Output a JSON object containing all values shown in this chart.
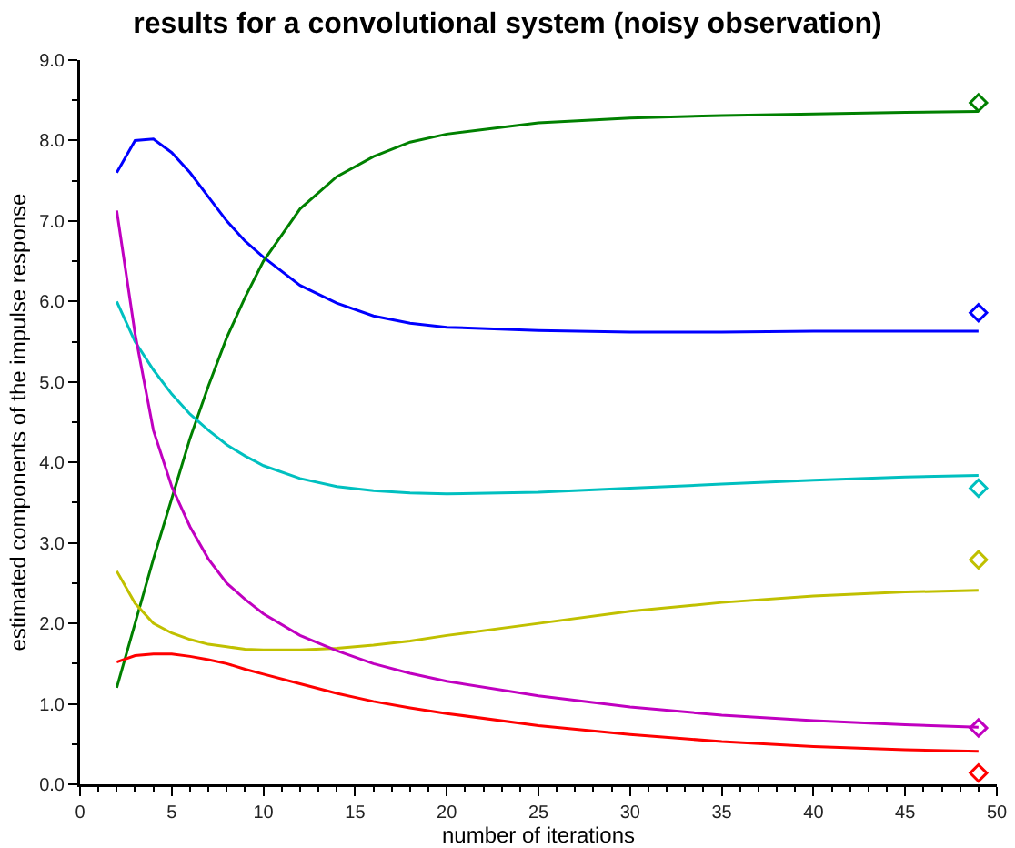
{
  "chart_data": {
    "type": "line",
    "title": "results for a convolutional system (noisy observation)",
    "xlabel": "number of iterations",
    "ylabel": "estimated components of the impulse response",
    "x": [
      2,
      3,
      4,
      5,
      6,
      7,
      8,
      9,
      10,
      12,
      14,
      16,
      18,
      20,
      25,
      30,
      35,
      40,
      45,
      49
    ],
    "xlim": [
      0,
      50
    ],
    "xticks": [
      0,
      {
        "value": 1,
        "label": null
      },
      {
        "value": 2,
        "label": null
      },
      {
        "value": 3,
        "label": null
      },
      {
        "value": 4,
        "label": null
      },
      5,
      {
        "value": 6,
        "label": null
      },
      {
        "value": 7,
        "label": null
      },
      {
        "value": 8,
        "label": null
      },
      {
        "value": 9,
        "label": null
      },
      10,
      {
        "value": 11,
        "label": null
      },
      {
        "value": 12,
        "label": null
      },
      {
        "value": 13,
        "label": null
      },
      {
        "value": 14,
        "label": null
      },
      15,
      {
        "value": 16,
        "label": null
      },
      {
        "value": 17,
        "label": null
      },
      {
        "value": 18,
        "label": null
      },
      {
        "value": 19,
        "label": null
      },
      20,
      {
        "value": 21,
        "label": null
      },
      {
        "value": 22,
        "label": null
      },
      {
        "value": 23,
        "label": null
      },
      {
        "value": 24,
        "label": null
      },
      25,
      {
        "value": 26,
        "label": null
      },
      {
        "value": 27,
        "label": null
      },
      {
        "value": 28,
        "label": null
      },
      {
        "value": 29,
        "label": null
      },
      30,
      {
        "value": 31,
        "label": null
      },
      {
        "value": 32,
        "label": null
      },
      {
        "value": 33,
        "label": null
      },
      {
        "value": 34,
        "label": null
      },
      35,
      {
        "value": 36,
        "label": null
      },
      {
        "value": 37,
        "label": null
      },
      {
        "value": 38,
        "label": null
      },
      {
        "value": 39,
        "label": null
      },
      40,
      {
        "value": 41,
        "label": null
      },
      {
        "value": 42,
        "label": null
      },
      {
        "value": 43,
        "label": null
      },
      {
        "value": 44,
        "label": null
      },
      45,
      {
        "value": 46,
        "label": null
      },
      {
        "value": 47,
        "label": null
      },
      {
        "value": 48,
        "label": null
      },
      {
        "value": 49,
        "label": null
      },
      50
    ],
    "ylim": [
      0,
      9
    ],
    "yticks": [
      {
        "value": 0,
        "label": "0.0"
      },
      {
        "value": 0.5,
        "label": null
      },
      {
        "value": 1,
        "label": "1.0"
      },
      {
        "value": 1.5,
        "label": null
      },
      {
        "value": 2,
        "label": "2.0"
      },
      {
        "value": 2.5,
        "label": null
      },
      {
        "value": 3,
        "label": "3.0"
      },
      {
        "value": 3.5,
        "label": null
      },
      {
        "value": 4,
        "label": "4.0"
      },
      {
        "value": 4.5,
        "label": null
      },
      {
        "value": 5,
        "label": "5.0"
      },
      {
        "value": 5.5,
        "label": null
      },
      {
        "value": 6,
        "label": "6.0"
      },
      {
        "value": 6.5,
        "label": null
      },
      {
        "value": 7,
        "label": "7.0"
      },
      {
        "value": 7.5,
        "label": null
      },
      {
        "value": 8,
        "label": "8.0"
      },
      {
        "value": 8.5,
        "label": null
      },
      {
        "value": 9,
        "label": "9.0"
      }
    ],
    "grid": false,
    "marker": "none",
    "line_style": "solid",
    "series": [
      {
        "color": "#0000ff",
        "values": [
          7.6,
          8.0,
          8.02,
          7.85,
          7.6,
          7.3,
          7.0,
          6.75,
          6.55,
          6.2,
          5.98,
          5.82,
          5.73,
          5.68,
          5.64,
          5.62,
          5.62,
          5.63,
          5.63,
          5.63
        ]
      },
      {
        "color": "#008000",
        "values": [
          1.2,
          2.0,
          2.8,
          3.55,
          4.3,
          4.95,
          5.55,
          6.05,
          6.5,
          7.15,
          7.55,
          7.8,
          7.98,
          8.08,
          8.22,
          8.28,
          8.31,
          8.33,
          8.35,
          8.36
        ]
      },
      {
        "color": "#00c0c0",
        "values": [
          6.0,
          5.5,
          5.15,
          4.85,
          4.6,
          4.4,
          4.22,
          4.08,
          3.96,
          3.8,
          3.7,
          3.65,
          3.62,
          3.61,
          3.63,
          3.68,
          3.73,
          3.78,
          3.82,
          3.84
        ]
      },
      {
        "color": "#c0c000",
        "values": [
          2.65,
          2.25,
          2.0,
          1.88,
          1.8,
          1.74,
          1.71,
          1.68,
          1.67,
          1.67,
          1.69,
          1.73,
          1.78,
          1.85,
          2.0,
          2.15,
          2.26,
          2.34,
          2.39,
          2.41
        ]
      },
      {
        "color": "#c000c0",
        "values": [
          7.13,
          5.6,
          4.4,
          3.7,
          3.2,
          2.8,
          2.5,
          2.3,
          2.12,
          1.85,
          1.66,
          1.5,
          1.38,
          1.28,
          1.1,
          0.96,
          0.86,
          0.79,
          0.74,
          0.71
        ]
      },
      {
        "color": "#ff0000",
        "values": [
          1.52,
          1.6,
          1.62,
          1.62,
          1.59,
          1.55,
          1.5,
          1.43,
          1.37,
          1.25,
          1.13,
          1.03,
          0.95,
          0.88,
          0.73,
          0.62,
          0.53,
          0.47,
          0.43,
          0.41
        ]
      },
      {
        "type": "scatter",
        "marker": "diamond",
        "values": [
          null,
          null,
          null,
          null,
          null,
          null,
          null,
          null,
          null,
          null,
          null,
          null,
          null,
          null,
          null,
          null,
          null,
          null,
          null,
          8.47
        ],
        "color": "#008000"
      },
      {
        "type": "scatter",
        "marker": "diamond",
        "values": [
          null,
          null,
          null,
          null,
          null,
          null,
          null,
          null,
          null,
          null,
          null,
          null,
          null,
          null,
          null,
          null,
          null,
          null,
          null,
          5.86
        ],
        "color": "#0000ff"
      },
      {
        "type": "scatter",
        "marker": "diamond",
        "values": [
          null,
          null,
          null,
          null,
          null,
          null,
          null,
          null,
          null,
          null,
          null,
          null,
          null,
          null,
          null,
          null,
          null,
          null,
          null,
          3.68
        ],
        "color": "#00c0c0"
      },
      {
        "type": "scatter",
        "marker": "diamond",
        "values": [
          null,
          null,
          null,
          null,
          null,
          null,
          null,
          null,
          null,
          null,
          null,
          null,
          null,
          null,
          null,
          null,
          null,
          null,
          null,
          2.79
        ],
        "color": "#c0c000"
      },
      {
        "type": "scatter",
        "marker": "diamond",
        "values": [
          null,
          null,
          null,
          null,
          null,
          null,
          null,
          null,
          null,
          null,
          null,
          null,
          null,
          null,
          null,
          null,
          null,
          null,
          null,
          0.7
        ],
        "color": "#c000c0"
      },
      {
        "type": "scatter",
        "marker": "diamond",
        "values": [
          null,
          null,
          null,
          null,
          null,
          null,
          null,
          null,
          null,
          null,
          null,
          null,
          null,
          null,
          null,
          null,
          null,
          null,
          null,
          0.14
        ],
        "color": "#ff0000"
      }
    ]
  }
}
